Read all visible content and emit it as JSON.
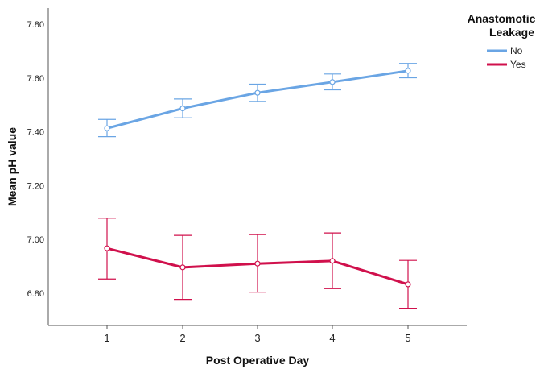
{
  "chart_data": {
    "type": "line",
    "xlabel": "Post Operative Day",
    "ylabel": "Mean pH value",
    "x": [
      1,
      2,
      3,
      4,
      5
    ],
    "ylim": [
      6.68,
      7.86
    ],
    "yticks": [
      "6.80",
      "7.00",
      "7.20",
      "7.40",
      "7.60",
      "7.80"
    ],
    "xticks": [
      "1",
      "2",
      "3",
      "4",
      "5"
    ],
    "legend": {
      "title_line1": "Anastomotic",
      "title_line2": "Leakage",
      "placement": "top-right"
    },
    "error_bars": true,
    "series": [
      {
        "name": "No",
        "color": "#6aa5e4",
        "values": [
          7.413,
          7.487,
          7.545,
          7.585,
          7.627
        ],
        "lower": [
          7.382,
          7.452,
          7.513,
          7.556,
          7.601
        ],
        "upper": [
          7.446,
          7.522,
          7.577,
          7.615,
          7.654
        ]
      },
      {
        "name": "Yes",
        "color": "#d0104c",
        "values": [
          6.967,
          6.896,
          6.91,
          6.92,
          6.833
        ],
        "lower": [
          6.853,
          6.777,
          6.804,
          6.817,
          6.744
        ],
        "upper": [
          7.079,
          7.015,
          7.018,
          7.024,
          6.922
        ]
      }
    ]
  }
}
